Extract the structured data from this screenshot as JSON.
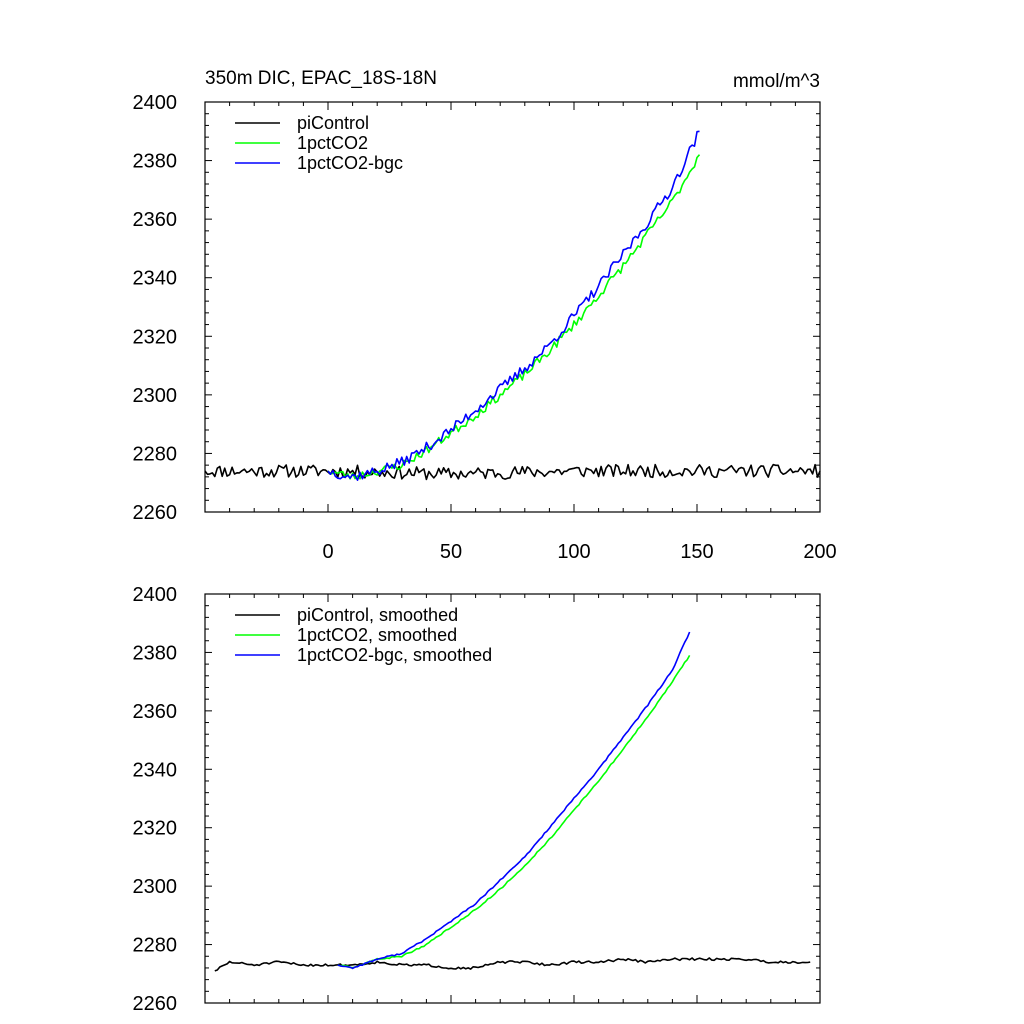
{
  "chart_data": [
    {
      "type": "line",
      "title": "350m DIC, EPAC_18S-18N",
      "units": "mmol/m^3",
      "xlim": [
        -50,
        200
      ],
      "ylim": [
        2260,
        2400
      ],
      "xticks": [
        0,
        50,
        100,
        150,
        200
      ],
      "yticks": [
        2260,
        2280,
        2300,
        2320,
        2340,
        2360,
        2380,
        2400
      ],
      "show_x_tick_labels": true,
      "grid": false,
      "legend_position": "top-left",
      "series": [
        {
          "name": "piControl",
          "color": "#000000",
          "x_start": -50,
          "x_end": 200,
          "anchors": [
            [
              -50,
              2274
            ],
            [
              0,
              2274
            ],
            [
              50,
              2273
            ],
            [
              100,
              2274
            ],
            [
              150,
              2274
            ],
            [
              200,
              2274
            ]
          ],
          "noise": 2.2,
          "seed": 11
        },
        {
          "name": "1pctCO2",
          "color": "#00ff00",
          "x_start": 0,
          "x_end": 151,
          "anchors": [
            [
              0,
              2274
            ],
            [
              10,
              2272
            ],
            [
              20,
              2274
            ],
            [
              30,
              2276
            ],
            [
              40,
              2281
            ],
            [
              50,
              2287
            ],
            [
              60,
              2293
            ],
            [
              70,
              2300
            ],
            [
              80,
              2307
            ],
            [
              90,
              2315
            ],
            [
              100,
              2324
            ],
            [
              110,
              2334
            ],
            [
              120,
              2344
            ],
            [
              130,
              2355
            ],
            [
              140,
              2366
            ],
            [
              151,
              2382
            ]
          ],
          "noise": 1.5,
          "seed": 23
        },
        {
          "name": "1pctCO2-bgc",
          "color": "#0000ff",
          "x_start": 0,
          "x_end": 151,
          "anchors": [
            [
              0,
              2274
            ],
            [
              10,
              2272
            ],
            [
              20,
              2274
            ],
            [
              30,
              2277
            ],
            [
              40,
              2282
            ],
            [
              50,
              2288
            ],
            [
              60,
              2295
            ],
            [
              70,
              2302
            ],
            [
              80,
              2309
            ],
            [
              90,
              2317
            ],
            [
              100,
              2327
            ],
            [
              110,
              2337
            ],
            [
              120,
              2348
            ],
            [
              130,
              2359
            ],
            [
              140,
              2371
            ],
            [
              151,
              2390
            ]
          ],
          "noise": 1.8,
          "seed": 37
        }
      ]
    },
    {
      "type": "line",
      "title": "",
      "units": "",
      "xlim": [
        -50,
        200
      ],
      "ylim": [
        2260,
        2400
      ],
      "xticks": [
        0,
        50,
        100,
        150,
        200
      ],
      "yticks": [
        2260,
        2280,
        2300,
        2320,
        2340,
        2360,
        2380,
        2400
      ],
      "show_x_tick_labels": false,
      "grid": false,
      "legend_position": "top-left",
      "series": [
        {
          "name": "piControl, smoothed",
          "color": "#000000",
          "x_start": -46,
          "x_end": 196,
          "anchors": [
            [
              -46,
              2271
            ],
            [
              -40,
              2274
            ],
            [
              -30,
              2273
            ],
            [
              -20,
              2274
            ],
            [
              -10,
              2273
            ],
            [
              0,
              2273
            ],
            [
              10,
              2273
            ],
            [
              20,
              2274
            ],
            [
              30,
              2273
            ],
            [
              40,
              2273
            ],
            [
              50,
              2272
            ],
            [
              60,
              2272
            ],
            [
              70,
              2274
            ],
            [
              80,
              2274
            ],
            [
              90,
              2273
            ],
            [
              100,
              2274
            ],
            [
              110,
              2274
            ],
            [
              120,
              2275
            ],
            [
              130,
              2274
            ],
            [
              140,
              2275
            ],
            [
              150,
              2275
            ],
            [
              160,
              2275
            ],
            [
              170,
              2275
            ],
            [
              180,
              2274
            ],
            [
              190,
              2274
            ],
            [
              196,
              2274
            ]
          ],
          "noise": 0.4,
          "seed": 51
        },
        {
          "name": "1pctCO2, smoothed",
          "color": "#00ff00",
          "x_start": 4,
          "x_end": 147,
          "anchors": [
            [
              4,
              2273
            ],
            [
              10,
              2272
            ],
            [
              20,
              2275
            ],
            [
              30,
              2276
            ],
            [
              40,
              2280
            ],
            [
              50,
              2286
            ],
            [
              60,
              2292
            ],
            [
              70,
              2299
            ],
            [
              80,
              2307
            ],
            [
              90,
              2316
            ],
            [
              100,
              2326
            ],
            [
              110,
              2336
            ],
            [
              120,
              2347
            ],
            [
              130,
              2358
            ],
            [
              140,
              2370
            ],
            [
              147,
              2379
            ]
          ],
          "noise": 0.25,
          "seed": 63
        },
        {
          "name": "1pctCO2-bgc, smoothed",
          "color": "#0000ff",
          "x_start": 4,
          "x_end": 147,
          "anchors": [
            [
              4,
              2273
            ],
            [
              10,
              2272
            ],
            [
              20,
              2275
            ],
            [
              30,
              2277
            ],
            [
              40,
              2282
            ],
            [
              50,
              2288
            ],
            [
              60,
              2294
            ],
            [
              70,
              2302
            ],
            [
              80,
              2310
            ],
            [
              90,
              2320
            ],
            [
              100,
              2330
            ],
            [
              110,
              2340
            ],
            [
              120,
              2351
            ],
            [
              130,
              2362
            ],
            [
              140,
              2374
            ],
            [
              147,
              2387
            ]
          ],
          "noise": 0.25,
          "seed": 77
        }
      ]
    }
  ]
}
